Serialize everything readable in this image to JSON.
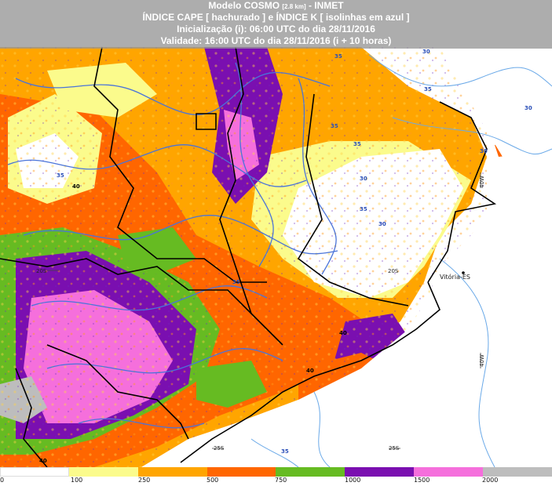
{
  "header": {
    "line1_prefix": "Modelo COSMO",
    "line1_res": "[2.8 km]",
    "line1_suffix": "- INMET",
    "line2": "ÍNDICE CAPE [ hachurado ] e ÍNDICE K [ isolinhas em azul ]",
    "line3": "Inicialização (i): 06:00 UTC do dia 28/11/2016",
    "line4": "Validade: 16:00 UTC do dia 28/11/2016 (i + 10 horas)"
  },
  "map": {
    "graticule_labels": {
      "lat_20": "20S",
      "lat_25": "25S",
      "lon_40": "40W"
    },
    "city": "Vitória-ES",
    "k_contour_labels": [
      "30",
      "35",
      "40"
    ],
    "colors": {
      "cape_0": "#ffffff",
      "cape_100": "#fbfb8c",
      "cape_250": "#ffa500",
      "cape_500": "#ff6600",
      "cape_750": "#66bb22",
      "cape_1000": "#7a0fb0",
      "cape_1500": "#f56fdc",
      "cape_2000": "#bdbdbd",
      "k_isolines": "#4a74d9",
      "k_labels": "#2a4fb8",
      "borders": "#000000",
      "ocean_lines": "#6aa9e8"
    }
  },
  "legend": {
    "ticks": [
      "0",
      "100",
      "250",
      "500",
      "750",
      "1000",
      "1500",
      "2000"
    ]
  }
}
